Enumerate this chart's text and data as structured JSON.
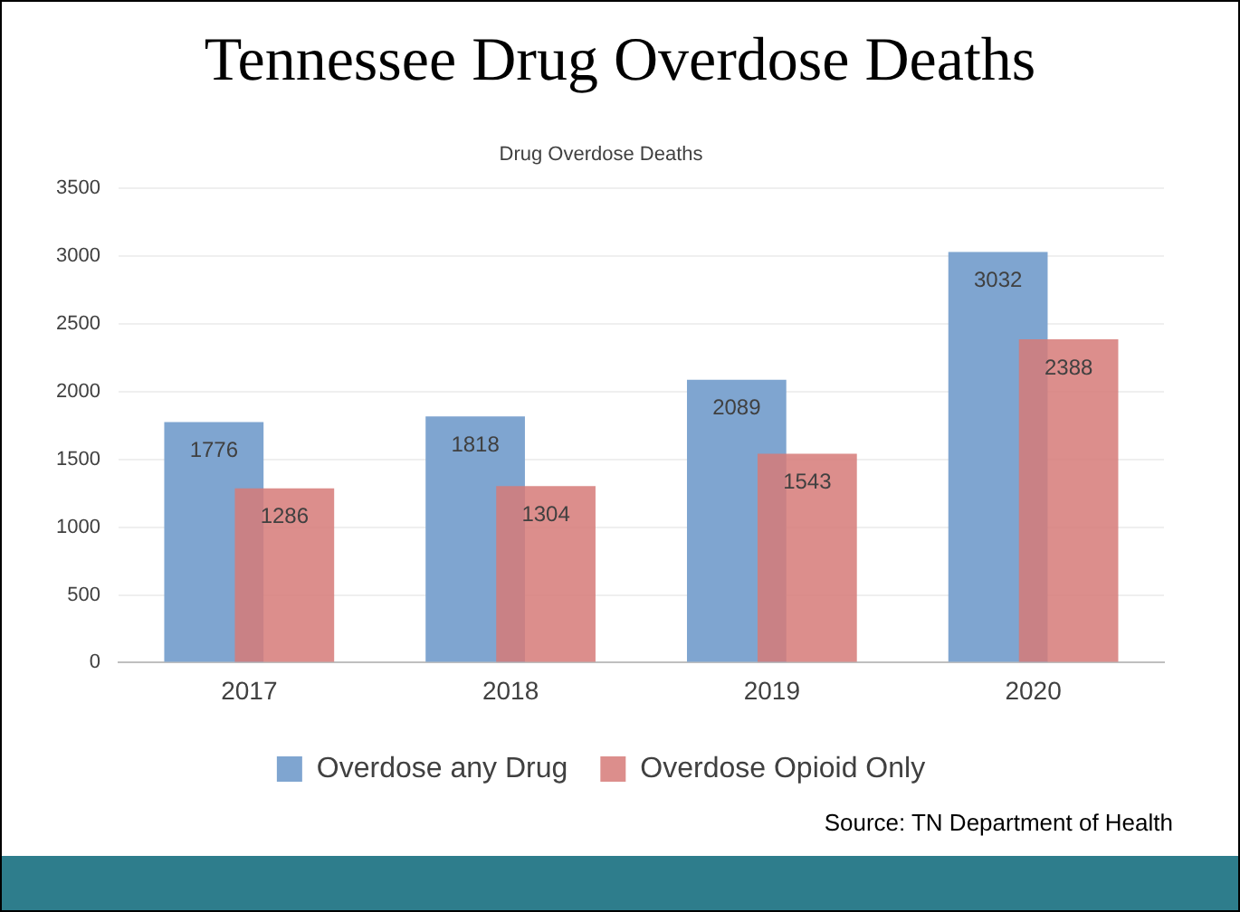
{
  "chart_data": {
    "type": "bar",
    "title": "Tennessee Drug Overdose Deaths",
    "subtitle": "Drug Overdose Deaths",
    "categories": [
      "2017",
      "2018",
      "2019",
      "2020"
    ],
    "series": [
      {
        "name": "Overdose any Drug",
        "color": "#7fa5d0",
        "values": [
          1776,
          1818,
          2089,
          3032
        ]
      },
      {
        "name": "Overdose Opioid Only",
        "color": "#d67a78",
        "values": [
          1286,
          1304,
          1543,
          2388
        ]
      }
    ],
    "ylim": [
      0,
      3500
    ],
    "yticks": [
      0,
      500,
      1000,
      1500,
      2000,
      2500,
      3000,
      3500
    ],
    "grid": "y",
    "legend": "bottom",
    "data_labels": true,
    "annotations": [
      "Source: TN Department of Health"
    ]
  }
}
